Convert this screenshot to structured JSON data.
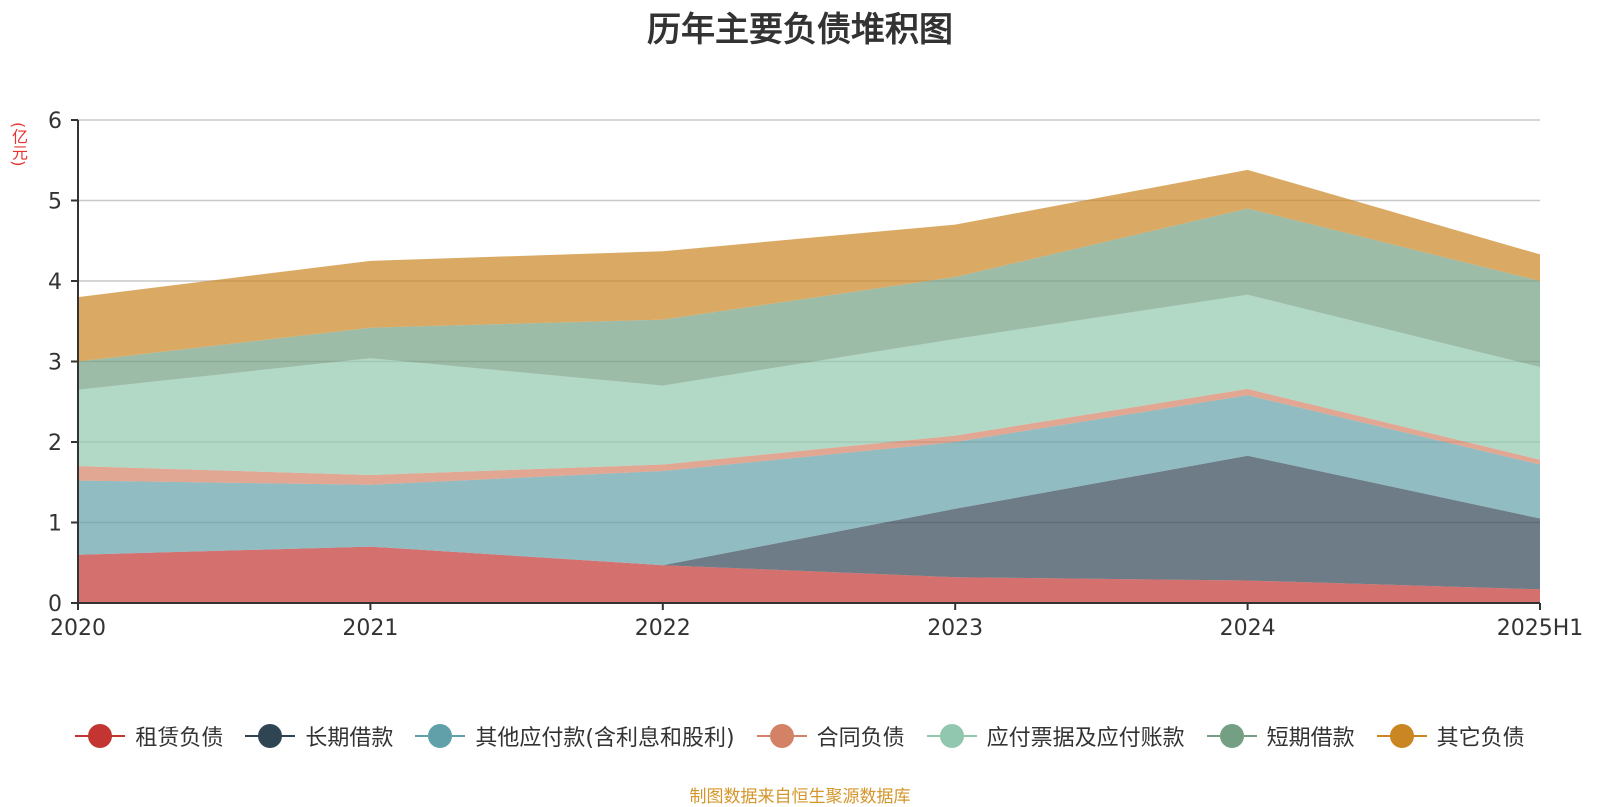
{
  "chart_data": {
    "type": "area",
    "stacked": true,
    "title": "历年主要负债堆积图",
    "unit_label": "(亿元)",
    "categories": [
      "2020",
      "2021",
      "2022",
      "2023",
      "2024",
      "2025H1"
    ],
    "ylim": [
      0,
      6
    ],
    "yticks": [
      0,
      1,
      2,
      3,
      4,
      5,
      6
    ],
    "grid": true,
    "legend_position": "bottom",
    "series": [
      {
        "name": "租赁负债",
        "color": "#c23531",
        "values": [
          0.6,
          0.7,
          0.47,
          0.32,
          0.28,
          0.17
        ]
      },
      {
        "name": "长期借款",
        "color": "#2f4554",
        "values": [
          0.0,
          0.0,
          0.0,
          0.85,
          1.55,
          0.88
        ]
      },
      {
        "name": "其他应付款(含利息和股利)",
        "color": "#61a0a8",
        "values": [
          0.92,
          0.77,
          1.17,
          0.83,
          0.75,
          0.67
        ]
      },
      {
        "name": "合同负债",
        "color": "#d48265",
        "values": [
          0.18,
          0.12,
          0.08,
          0.08,
          0.08,
          0.06
        ]
      },
      {
        "name": "应付票据及应付账款",
        "color": "#91c7ae",
        "values": [
          0.95,
          1.45,
          0.98,
          1.2,
          1.17,
          1.15
        ]
      },
      {
        "name": "短期借款",
        "color": "#749f83",
        "values": [
          0.35,
          0.38,
          0.82,
          0.77,
          1.07,
          1.07
        ]
      },
      {
        "name": "其它负债",
        "color": "#ca8622",
        "values": [
          0.8,
          0.83,
          0.85,
          0.65,
          0.48,
          0.33
        ]
      }
    ]
  },
  "source": "制图数据来自恒生聚源数据库"
}
